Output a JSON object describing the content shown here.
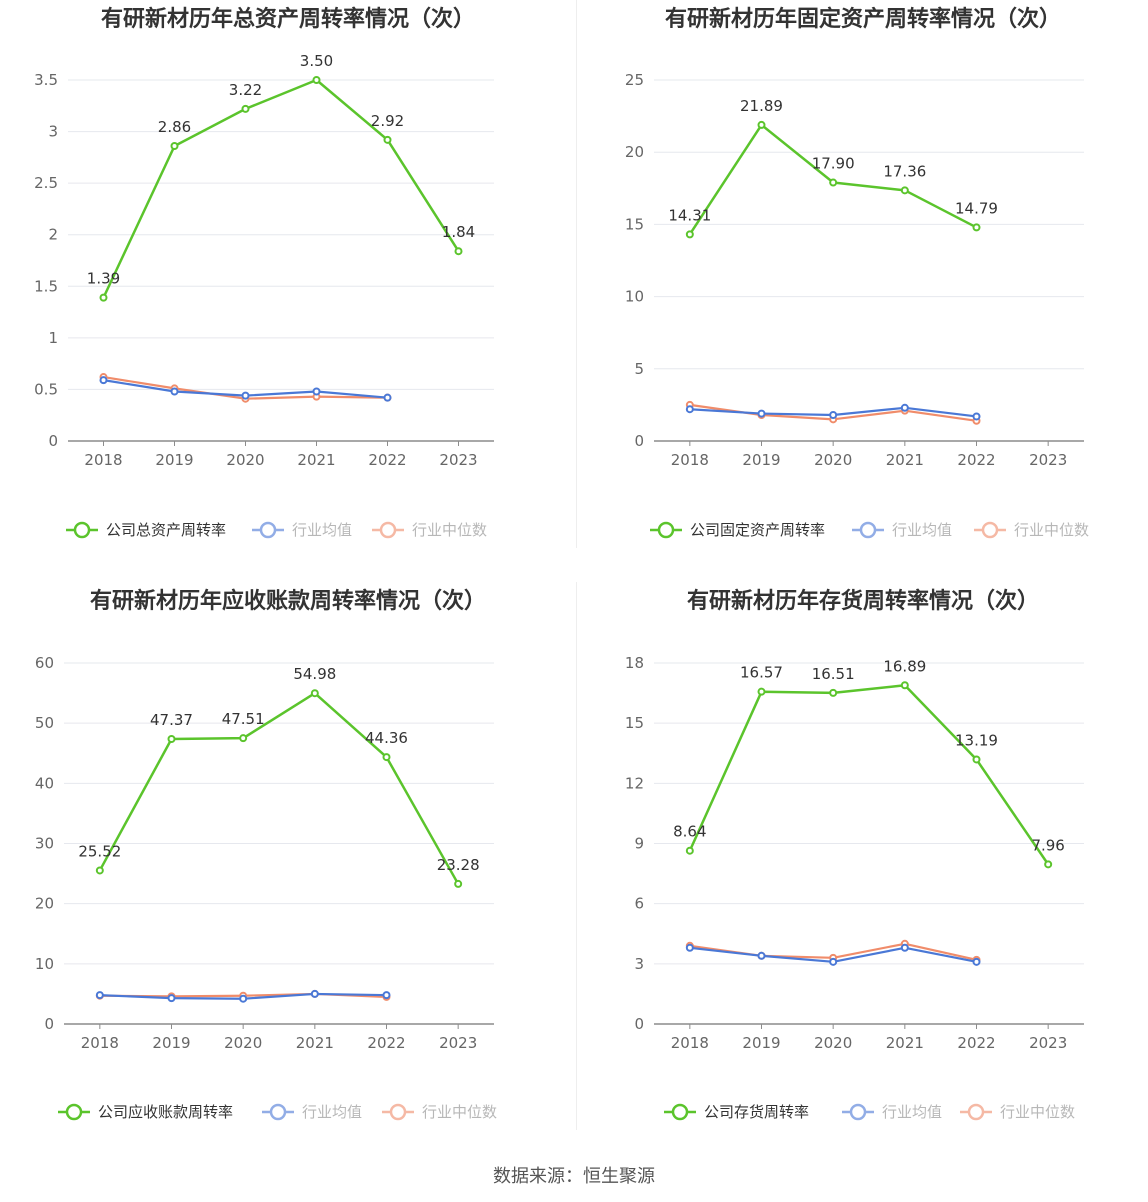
{
  "colors": {
    "company": "#5bc42c",
    "average": "#4a78d6",
    "median": "#f08c6a",
    "grid": "#e6e8ee",
    "axis": "#8c8c8c"
  },
  "legend": {
    "average": "行业均值",
    "median": "行业中位数"
  },
  "source": "数据来源：恒生聚源",
  "chart_data": [
    {
      "type": "line",
      "title": "有研新材历年总资产周转率情况（次）",
      "company_label": "公司总资产周转率",
      "x": [
        "2018",
        "2019",
        "2020",
        "2021",
        "2022",
        "2023"
      ],
      "y_ticks": [
        "0",
        "0.5",
        "1",
        "1.5",
        "2",
        "2.5",
        "3",
        "3.5"
      ],
      "ylim": [
        0,
        3.5
      ],
      "series": [
        {
          "key": "company",
          "values": [
            1.39,
            2.86,
            3.22,
            3.5,
            2.92,
            1.84
          ],
          "labels": [
            "1.39",
            "2.86",
            "3.22",
            "3.50",
            "2.92",
            "1.84"
          ]
        },
        {
          "key": "average",
          "values": [
            0.59,
            0.48,
            0.44,
            0.48,
            0.42,
            null
          ]
        },
        {
          "key": "median",
          "values": [
            0.62,
            0.51,
            0.41,
            0.43,
            0.42,
            null
          ]
        }
      ]
    },
    {
      "type": "line",
      "title": "有研新材历年固定资产周转率情况（次）",
      "company_label": "公司固定资产周转率",
      "x": [
        "2018",
        "2019",
        "2020",
        "2021",
        "2022",
        "2023"
      ],
      "y_ticks": [
        "0",
        "5",
        "10",
        "15",
        "20",
        "25"
      ],
      "ylim": [
        0,
        25
      ],
      "series": [
        {
          "key": "company",
          "values": [
            14.31,
            21.89,
            17.9,
            17.36,
            14.79,
            null
          ],
          "labels": [
            "14.31",
            "21.89",
            "17.90",
            "17.36",
            "14.79",
            null
          ]
        },
        {
          "key": "average",
          "values": [
            2.2,
            1.9,
            1.8,
            2.3,
            1.7,
            null
          ]
        },
        {
          "key": "median",
          "values": [
            2.5,
            1.8,
            1.5,
            2.1,
            1.4,
            null
          ]
        }
      ]
    },
    {
      "type": "line",
      "title": "有研新材历年应收账款周转率情况（次）",
      "company_label": "公司应收账款周转率",
      "x": [
        "2018",
        "2019",
        "2020",
        "2021",
        "2022",
        "2023"
      ],
      "y_ticks": [
        "0",
        "10",
        "20",
        "30",
        "40",
        "50",
        "60"
      ],
      "ylim": [
        0,
        60
      ],
      "series": [
        {
          "key": "company",
          "values": [
            25.52,
            47.37,
            47.51,
            54.98,
            44.36,
            23.28
          ],
          "labels": [
            "25.52",
            "47.37",
            "47.51",
            "54.98",
            "44.36",
            "23.28"
          ]
        },
        {
          "key": "average",
          "values": [
            4.8,
            4.3,
            4.2,
            5.0,
            4.8,
            null
          ]
        },
        {
          "key": "median",
          "values": [
            4.7,
            4.6,
            4.7,
            5.0,
            4.5,
            null
          ]
        }
      ]
    },
    {
      "type": "line",
      "title": "有研新材历年存货周转率情况（次）",
      "company_label": "公司存货周转率",
      "x": [
        "2018",
        "2019",
        "2020",
        "2021",
        "2022",
        "2023"
      ],
      "y_ticks": [
        "0",
        "3",
        "6",
        "9",
        "12",
        "15",
        "18"
      ],
      "ylim": [
        0,
        18
      ],
      "series": [
        {
          "key": "company",
          "values": [
            8.64,
            16.57,
            16.51,
            16.89,
            13.19,
            7.96
          ],
          "labels": [
            "8.64",
            "16.57",
            "16.51",
            "16.89",
            "13.19",
            "7.96"
          ]
        },
        {
          "key": "average",
          "values": [
            3.8,
            3.4,
            3.1,
            3.8,
            3.1,
            null
          ]
        },
        {
          "key": "median",
          "values": [
            3.9,
            3.4,
            3.3,
            4.0,
            3.2,
            null
          ]
        }
      ]
    }
  ]
}
